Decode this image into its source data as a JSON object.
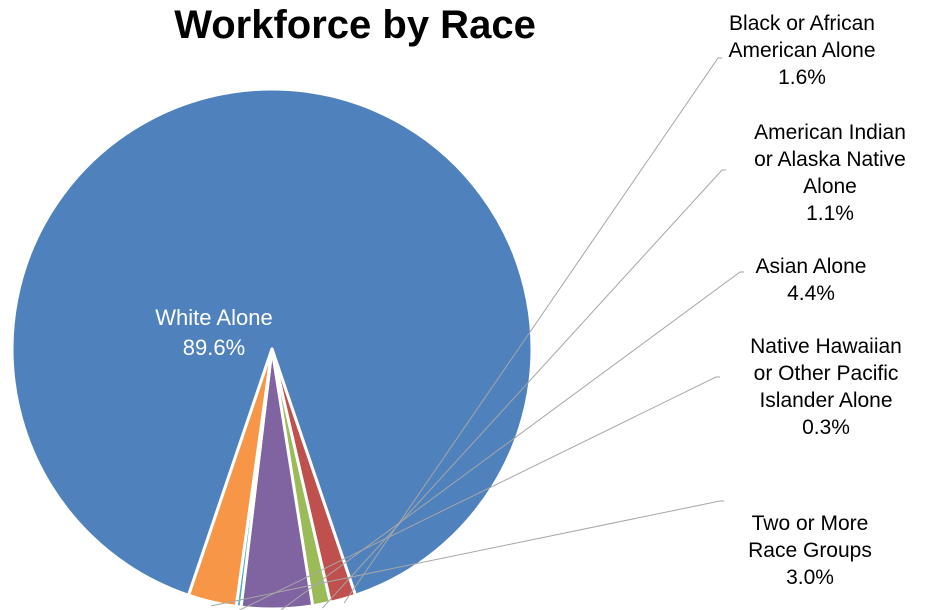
{
  "chart_data": {
    "type": "pie",
    "title": "Workforce by Race",
    "slices": [
      {
        "name": "White Alone",
        "value": 89.6,
        "label": "89.6%",
        "color": "#4f81bd"
      },
      {
        "name": "Black or African American Alone",
        "value": 1.6,
        "label": "1.6%",
        "color": "#c0504d"
      },
      {
        "name": "American Indian or Alaska Native Alone",
        "value": 1.1,
        "label": "1.1%",
        "color": "#9bbb59"
      },
      {
        "name": "Asian Alone",
        "value": 4.4,
        "label": "4.4%",
        "color": "#8064a2"
      },
      {
        "name": "Native Hawaiian or Other Pacific Islander Alone",
        "value": 0.3,
        "label": "0.3%",
        "color": "#4bacc6"
      },
      {
        "name": "Two or More Race Groups",
        "value": 3.0,
        "label": "3.0%",
        "color": "#f79646"
      }
    ],
    "label_lines": [
      [
        "White Alone"
      ],
      [
        "Black or African",
        "American Alone"
      ],
      [
        "American Indian",
        "or Alaska Native",
        "Alone"
      ],
      [
        "Asian Alone"
      ],
      [
        "Native Hawaiian",
        "or Other Pacific",
        "Islander Alone"
      ],
      [
        "Two or More",
        "Race Groups"
      ]
    ],
    "legend": "none",
    "data_labels": "category name and percentage"
  }
}
